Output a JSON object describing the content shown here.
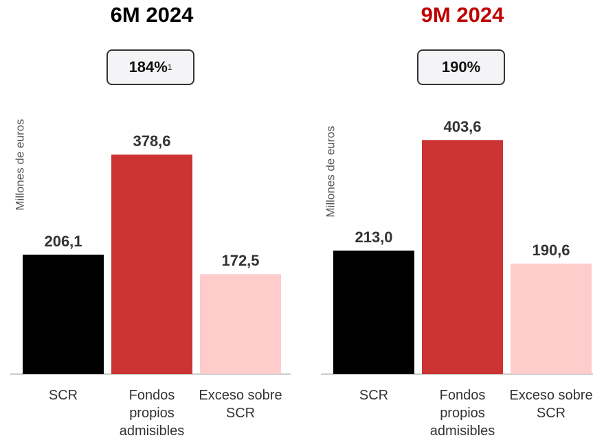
{
  "chart_data": [
    {
      "type": "bar",
      "title": "6M 2024",
      "title_color": "#000000",
      "ratio": "184%",
      "ratio_note": "1",
      "y_label": "Millones de euros",
      "categories": [
        "SCR",
        "Fondos propios admisibles",
        "Exceso sobre SCR"
      ],
      "values": [
        206.1,
        378.6,
        172.5
      ],
      "value_labels": [
        "206,1",
        "378,6",
        "172,5"
      ],
      "colors": [
        "#000000",
        "#cc3333",
        "#ffcccc"
      ],
      "ylim": [
        0,
        450
      ]
    },
    {
      "type": "bar",
      "title": "9M 2024",
      "title_color": "#c00000",
      "ratio": "190%",
      "y_label": "Millones de euros",
      "categories": [
        "SCR",
        "Fondos propios admisibles",
        "Exceso sobre SCR"
      ],
      "values": [
        213.0,
        403.6,
        190.6
      ],
      "value_labels": [
        "213,0",
        "403,6",
        "190,6"
      ],
      "colors": [
        "#000000",
        "#cc3333",
        "#ffcccc"
      ],
      "ylim": [
        0,
        450
      ]
    }
  ]
}
